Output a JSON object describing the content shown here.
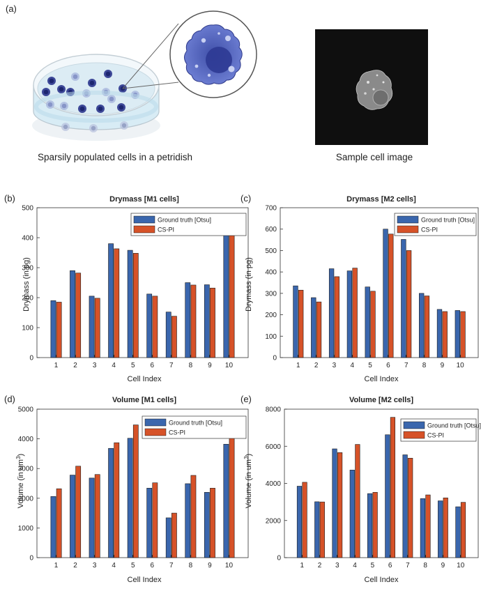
{
  "figure": {
    "panel_a_label": "(a)",
    "caption_left": "Sparsily populated cells in a petridish",
    "caption_right": "Sample cell image"
  },
  "colors": {
    "ground_truth": "#3a66ad",
    "cs_pi": "#d65228",
    "dish_wall": "#c9e4f1",
    "cell_light": "#a9b8dd",
    "cell_dark": "#343f92"
  },
  "chart_data": [
    {
      "id": "b",
      "panel_label": "(b)",
      "type": "bar",
      "title": "Drymass [M1 cells]",
      "xlabel": "Cell Index",
      "ylabel": "Drymass (in pg)",
      "ylim": [
        0,
        500
      ],
      "yticks": [
        0,
        100,
        200,
        300,
        400,
        500
      ],
      "categories": [
        "1",
        "2",
        "3",
        "4",
        "5",
        "6",
        "7",
        "8",
        "9",
        "10"
      ],
      "series": [
        {
          "name": "Ground truth [Otsu]",
          "values": [
            190,
            290,
            205,
            380,
            358,
            212,
            152,
            250,
            243,
            435
          ]
        },
        {
          "name": "CS-PI",
          "values": [
            185,
            282,
            198,
            363,
            348,
            205,
            138,
            242,
            232,
            420
          ]
        }
      ]
    },
    {
      "id": "c",
      "panel_label": "(c)",
      "type": "bar",
      "title": "Drymass [M2 cells]",
      "xlabel": "Cell Index",
      "ylabel": "Drymass (in pg)",
      "ylim": [
        0,
        700
      ],
      "yticks": [
        0,
        100,
        200,
        300,
        400,
        500,
        600,
        700
      ],
      "categories": [
        "1",
        "2",
        "3",
        "4",
        "5",
        "6",
        "7",
        "8",
        "9",
        "10"
      ],
      "series": [
        {
          "name": "Ground truth [Otsu]",
          "values": [
            335,
            280,
            415,
            405,
            330,
            600,
            552,
            300,
            225,
            220
          ]
        },
        {
          "name": "CS-PI",
          "values": [
            315,
            260,
            378,
            418,
            310,
            577,
            500,
            288,
            215,
            215
          ]
        }
      ]
    },
    {
      "id": "d",
      "panel_label": "(d)",
      "type": "bar",
      "title": "Volume [M1 cells]",
      "xlabel": "Cell Index",
      "ylabel": "Volume (in um",
      "ylabel_sup": "3",
      "ylabel_end": ")",
      "ylim": [
        0,
        5000
      ],
      "yticks": [
        0,
        1000,
        2000,
        3000,
        4000,
        5000
      ],
      "categories": [
        "1",
        "2",
        "3",
        "4",
        "5",
        "6",
        "7",
        "8",
        "9",
        "10"
      ],
      "series": [
        {
          "name": "Ground truth [Otsu]",
          "values": [
            2060,
            2780,
            2680,
            3680,
            4020,
            2340,
            1340,
            2490,
            2200,
            3820
          ]
        },
        {
          "name": "CS-PI",
          "values": [
            2320,
            3080,
            2800,
            3870,
            4470,
            2520,
            1500,
            2770,
            2340,
            4120
          ]
        }
      ]
    },
    {
      "id": "e",
      "panel_label": "(e)",
      "type": "bar",
      "title": "Volume [M2 cells]",
      "xlabel": "Cell Index",
      "ylabel": "Volume (in um",
      "ylabel_sup": "3",
      "ylabel_end": ")",
      "ylim": [
        0,
        8000
      ],
      "yticks": [
        0,
        2000,
        4000,
        6000,
        8000
      ],
      "categories": [
        "1",
        "2",
        "3",
        "4",
        "5",
        "6",
        "7",
        "8",
        "9",
        "10"
      ],
      "series": [
        {
          "name": "Ground truth [Otsu]",
          "values": [
            3850,
            3010,
            5860,
            4720,
            3450,
            6620,
            5540,
            3180,
            3060,
            2740
          ]
        },
        {
          "name": "CS-PI",
          "values": [
            4060,
            3000,
            5660,
            6100,
            3520,
            7560,
            5360,
            3380,
            3220,
            2980
          ]
        }
      ]
    }
  ]
}
